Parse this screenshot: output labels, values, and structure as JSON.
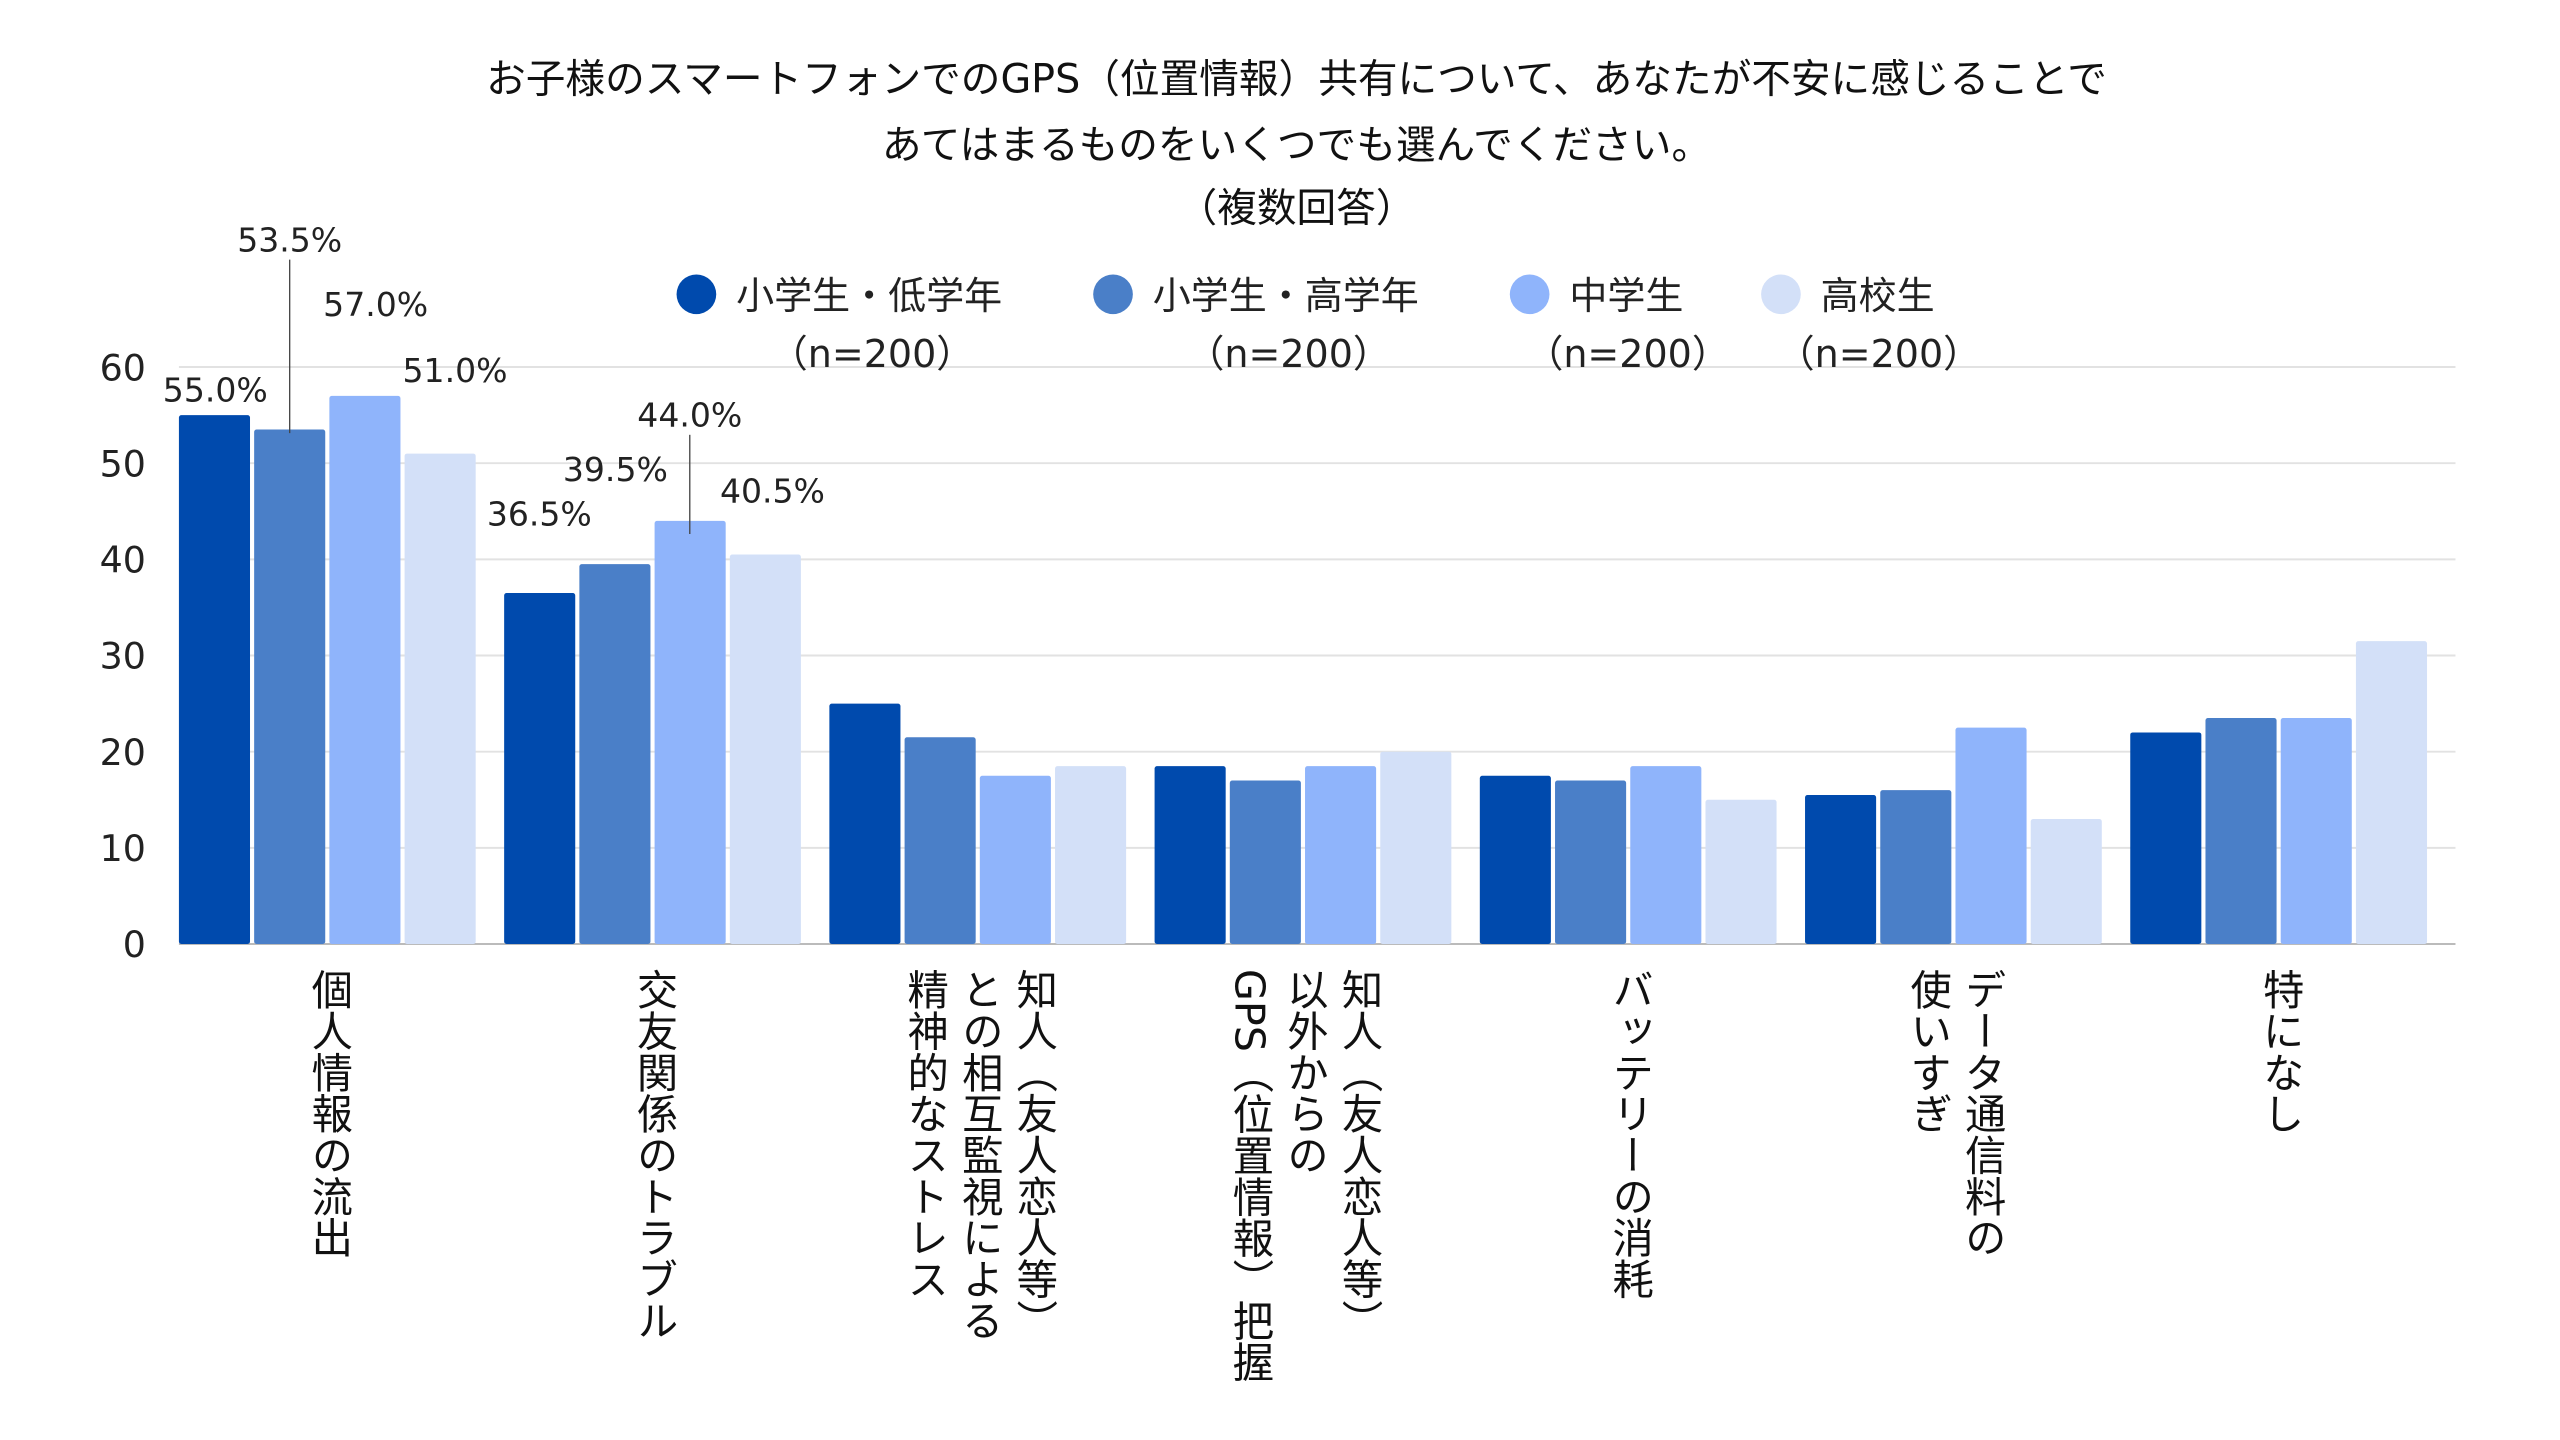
{
  "chart_data": {
    "type": "bar",
    "title_lines": [
      "お子様のスマートフォンでのGPS（位置情報）共有について、あなたが不安に感じることで",
      "あてはまるものをいくつでも選んでください。",
      "（複数回答）"
    ],
    "categories": [
      [
        "個人情報の流出"
      ],
      [
        "交友関係のトラブル"
      ],
      [
        "知人（友人恋人等）",
        "との相互監視による",
        "精神的なストレス"
      ],
      [
        "知人（友人恋人等）",
        "以外からの",
        "GPS（位置情報）把握"
      ],
      [
        "バッテリーの消耗"
      ],
      [
        "データ通信料の",
        "使いすぎ"
      ],
      [
        "特になし"
      ]
    ],
    "series": [
      {
        "name": "小学生・低学年",
        "sub": "（n=200）",
        "color": "#004AAD",
        "values": [
          55.0,
          36.5,
          25.0,
          18.5,
          17.5,
          15.5,
          22.0
        ]
      },
      {
        "name": "小学生・高学年",
        "sub": "（n=200）",
        "color": "#4A7FC8",
        "values": [
          53.5,
          39.5,
          21.5,
          17.0,
          17.0,
          16.0,
          23.5
        ]
      },
      {
        "name": "中学生",
        "sub": "（n=200）",
        "color": "#8FB4FB",
        "values": [
          57.0,
          44.0,
          17.5,
          18.5,
          18.5,
          22.5,
          23.5
        ]
      },
      {
        "name": "高校生",
        "sub": "（n=200）",
        "color": "#D3E0F8",
        "values": [
          51.0,
          40.5,
          18.5,
          20.0,
          15.0,
          13.0,
          31.5
        ]
      }
    ],
    "data_labels": [
      [
        "55.0%",
        "36.5%"
      ],
      [
        "53.5%",
        "39.5%"
      ],
      [
        "57.0%",
        "44.0%"
      ],
      [
        "51.0%",
        "40.5%"
      ]
    ],
    "yticks": [
      "0",
      "10",
      "20",
      "30",
      "40",
      "50",
      "60"
    ],
    "ylim": [
      0,
      60
    ],
    "grid": true,
    "legend_placement": "top"
  }
}
